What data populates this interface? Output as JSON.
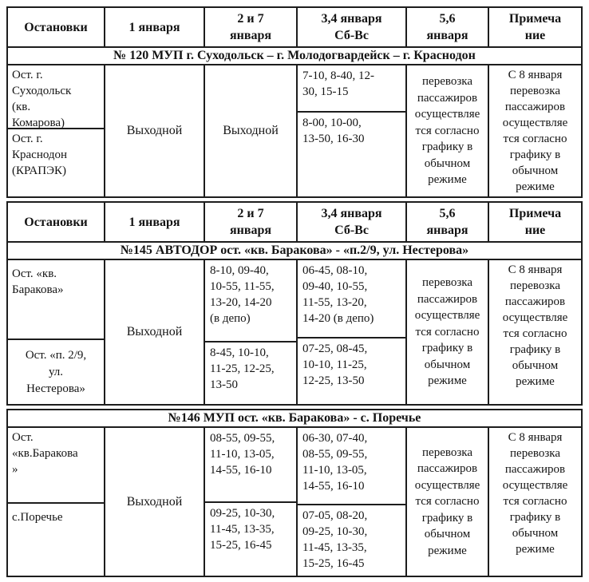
{
  "header_row": [
    "Остановки",
    "1 января",
    "2 и 7\nянваря",
    "3,4 января\nСб-Вс",
    "5,6\nянваря",
    "Примеча\nние"
  ],
  "common": {
    "day_off": "Выходной",
    "normal_service": "перевозка\nпассажиров\nосуществляе\nтся согласно\nграфику в\nобычном\nрежиме",
    "note_from_jan8": "С 8 января\nперевозка\nпассажиров\nосуществляе\nтся согласно\nграфику в\nобычном\nрежиме"
  },
  "route120": {
    "banner": "№ 120 МУП г. Суходольск – г. Молодогвардейск – г. Краснодон",
    "stop_a": "Ост. г.\nСуходольск\n(кв.\nКомарова)",
    "stop_b": "Ост. г.\nКраснодон\n(КРАПЭК)",
    "times_3_4_a": "7-10, 8-40, 12-\n30, 15-15",
    "times_3_4_b": "8-00, 10-00,\n13-50, 16-30"
  },
  "route145": {
    "banner": "№145 АВТОДОР ост. «кв. Баракова» - «п.2/9, ул. Нестерова»",
    "stop_a": "Ост. «кв.\nБаракова»",
    "stop_b": "Ост. «п. 2/9,\nул.\nНестерова»",
    "times_2_7_a": "8-10, 09-40,\n10-55, 11-55,\n13-20, 14-20\n(в депо)",
    "times_2_7_b": "8-45, 10-10,\n11-25, 12-25,\n13-50",
    "times_3_4_a": "06-45, 08-10,\n09-40, 10-55,\n11-55, 13-20,\n14-20 (в депо)",
    "times_3_4_b": "07-25, 08-45,\n10-10, 11-25,\n12-25, 13-50"
  },
  "route146": {
    "banner": "№146 МУП ост. «кв. Баракова» - с. Поречье",
    "stop_a": "Ост.\n«кв.Баракова\n»",
    "stop_b": "с.Поречье",
    "times_2_7_a": "08-55, 09-55,\n11-10, 13-05,\n14-55, 16-10",
    "times_2_7_b": "09-25, 10-30,\n11-45, 13-35,\n15-25, 16-45",
    "times_3_4_a": "06-30, 07-40,\n08-55, 09-55,\n11-10, 13-05,\n14-55, 16-10",
    "times_3_4_b": "07-05, 08-20,\n09-25, 10-30,\n11-45, 13-35,\n15-25, 16-45"
  }
}
